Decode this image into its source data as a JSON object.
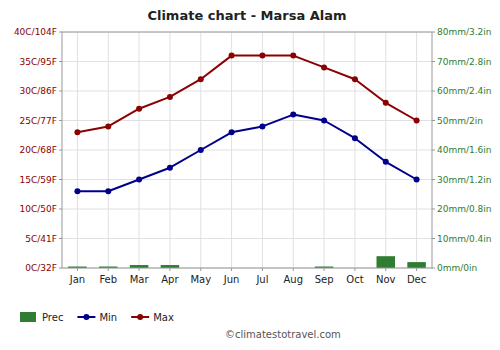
{
  "chart_data": {
    "type": "combo",
    "title": "Climate chart - Marsa Alam",
    "categories": [
      "Jan",
      "Feb",
      "Mar",
      "Apr",
      "May",
      "Jun",
      "Jul",
      "Aug",
      "Sep",
      "Oct",
      "Nov",
      "Dec"
    ],
    "series": [
      {
        "name": "Prec",
        "type": "bar",
        "axis": "y2",
        "color": "#2E7D32",
        "values": [
          0.5,
          0.5,
          1,
          1,
          0,
          0,
          0,
          0,
          0.5,
          0,
          4,
          2
        ]
      },
      {
        "name": "Min",
        "type": "line",
        "color": "#00008B",
        "marker": "circle",
        "values": [
          13,
          13,
          15,
          17,
          20,
          23,
          24,
          26,
          25,
          22,
          18,
          15
        ]
      },
      {
        "name": "Max",
        "type": "line",
        "color": "#8B0000",
        "marker": "circle",
        "values": [
          23,
          24,
          27,
          29,
          32,
          36,
          36,
          36,
          34,
          32,
          28,
          25
        ]
      }
    ],
    "ylim": [
      0,
      40
    ],
    "yticks": [
      {
        "value": 0,
        "label": "0C/32F"
      },
      {
        "value": 5,
        "label": "5C/41F"
      },
      {
        "value": 10,
        "label": "10C/50F"
      },
      {
        "value": 15,
        "label": "15C/59F"
      },
      {
        "value": 20,
        "label": "20C/68F"
      },
      {
        "value": 25,
        "label": "25C/77F"
      },
      {
        "value": 30,
        "label": "30C/86F"
      },
      {
        "value": 35,
        "label": "35C/95F"
      },
      {
        "value": 40,
        "label": "40C/104F"
      }
    ],
    "y2lim": [
      0,
      80
    ],
    "y2ticks": [
      {
        "value": 0,
        "label": "0mm/0in"
      },
      {
        "value": 10,
        "label": "10mm/0.4in"
      },
      {
        "value": 20,
        "label": "20mm/0.8in"
      },
      {
        "value": 30,
        "label": "30mm/1.2in"
      },
      {
        "value": 40,
        "label": "40mm/1.6in"
      },
      {
        "value": 50,
        "label": "50mm/2in"
      },
      {
        "value": 60,
        "label": "60mm/2.4in"
      },
      {
        "value": 70,
        "label": "70mm/2.8in"
      },
      {
        "value": 80,
        "label": "80mm/3.2in"
      }
    ],
    "grid": true,
    "legend": "lower left",
    "annotations": [
      "©climatestotravel.com"
    ]
  }
}
